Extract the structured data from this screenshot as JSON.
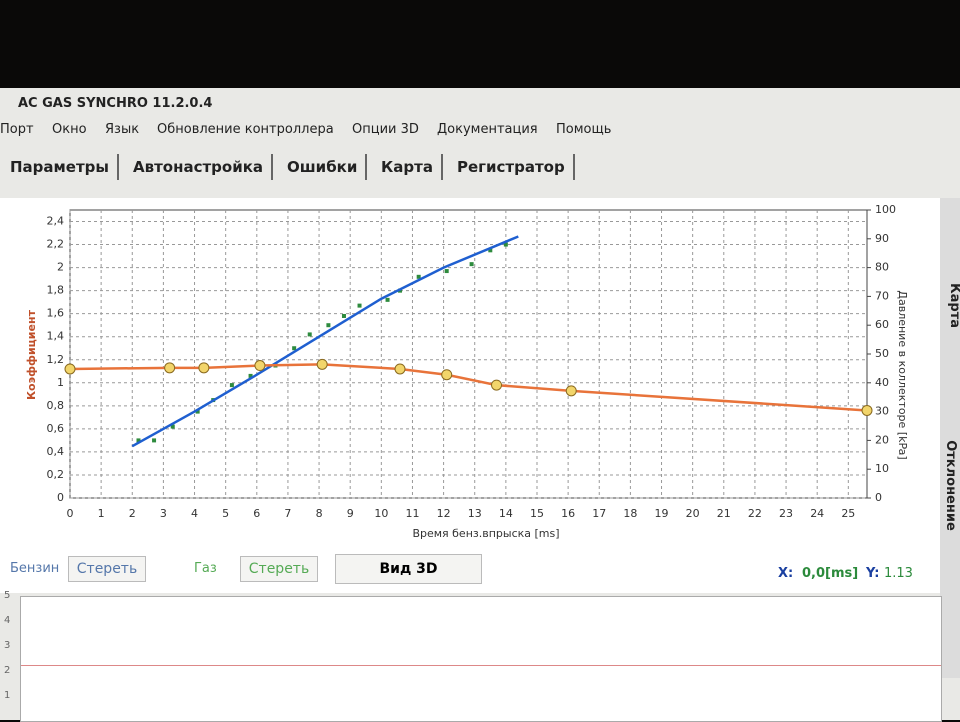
{
  "window": {
    "title": "AC GAS SYNCHRO  11.2.0.4",
    "menu": [
      "Порт",
      "Окно",
      "Язык",
      "Обновление контроллера",
      "Опции 3D",
      "Документация",
      "Помощь"
    ],
    "tabs": [
      "Параметры",
      "Автонастройка",
      "Ошибки",
      "Карта",
      "Регистратор"
    ],
    "side_tabs": [
      "Карта",
      "Отклонение"
    ]
  },
  "controls": {
    "petrol_label": "Бензин",
    "petrol_clear": "Стереть",
    "gas_label": "Газ",
    "gas_clear": "Стереть",
    "view3d": "Вид 3D",
    "x_label": "X:",
    "x_value": "0,0[ms]",
    "y_label": "Y:",
    "y_value": "1.13"
  },
  "lower_panel": {
    "labels": [
      "5",
      "4",
      "3",
      "2",
      "1"
    ]
  },
  "chart_data": {
    "type": "line",
    "xlabel": "Время бенз.впрыска [ms]",
    "ylabel": "Коэффициент",
    "y2label": "Давление в коллекторе [kPa]",
    "xlim": [
      0,
      25.6
    ],
    "xticks": [
      0,
      1,
      2,
      3,
      4,
      5,
      6,
      7,
      8,
      9,
      10,
      11,
      12,
      13,
      14,
      15,
      16,
      17,
      18,
      19,
      20,
      21,
      22,
      23,
      24,
      25
    ],
    "ylim": [
      0,
      2.5
    ],
    "yticks": [
      0,
      {
        "value": 0.2,
        "label": "0,2"
      },
      {
        "value": 0.4,
        "label": "0,4"
      },
      {
        "value": 0.6,
        "label": "0,6"
      },
      {
        "value": 0.8,
        "label": "0,8"
      },
      1,
      {
        "value": 1.2,
        "label": "1,2"
      },
      {
        "value": 1.4,
        "label": "1,4"
      },
      {
        "value": 1.6,
        "label": "1,6"
      },
      {
        "value": 1.8,
        "label": "1,8"
      },
      2,
      {
        "value": 2.2,
        "label": "2,2"
      },
      {
        "value": 2.4,
        "label": "2,4"
      }
    ],
    "y2lim": [
      0,
      100
    ],
    "y2ticks": [
      0,
      10,
      20,
      30,
      40,
      50,
      60,
      70,
      80,
      90,
      100
    ],
    "grid": true,
    "series": [
      {
        "type": "scatter",
        "color": "#2e8b3e",
        "x": [
          2.2,
          2.7,
          3.3,
          4.1,
          4.6,
          5.2,
          5.8,
          6.6,
          7.2,
          7.7,
          8.3,
          8.8,
          9.3,
          10.2,
          10.6,
          11.2,
          12.1,
          12.9,
          13.5,
          14.0
        ],
        "values": [
          0.5,
          0.5,
          0.62,
          0.75,
          0.85,
          0.98,
          1.06,
          1.15,
          1.3,
          1.42,
          1.5,
          1.58,
          1.67,
          1.72,
          1.8,
          1.92,
          1.97,
          2.03,
          2.15,
          2.2
        ]
      },
      {
        "type": "line",
        "color": "#1f5fd0",
        "x": [
          2,
          4,
          6,
          8,
          10,
          12,
          14.4
        ],
        "values": [
          0.45,
          0.75,
          1.07,
          1.4,
          1.73,
          2.0,
          2.27
        ]
      },
      {
        "type": "line",
        "color": "#e8733a",
        "marker_color": "#f2d56b",
        "x": [
          0,
          3.2,
          4.3,
          6.1,
          8.1,
          10.6,
          12.1,
          13.7,
          16.1,
          25.6
        ],
        "values": [
          1.12,
          1.13,
          1.13,
          1.15,
          1.16,
          1.12,
          1.07,
          0.98,
          0.93,
          0.76
        ]
      }
    ]
  }
}
